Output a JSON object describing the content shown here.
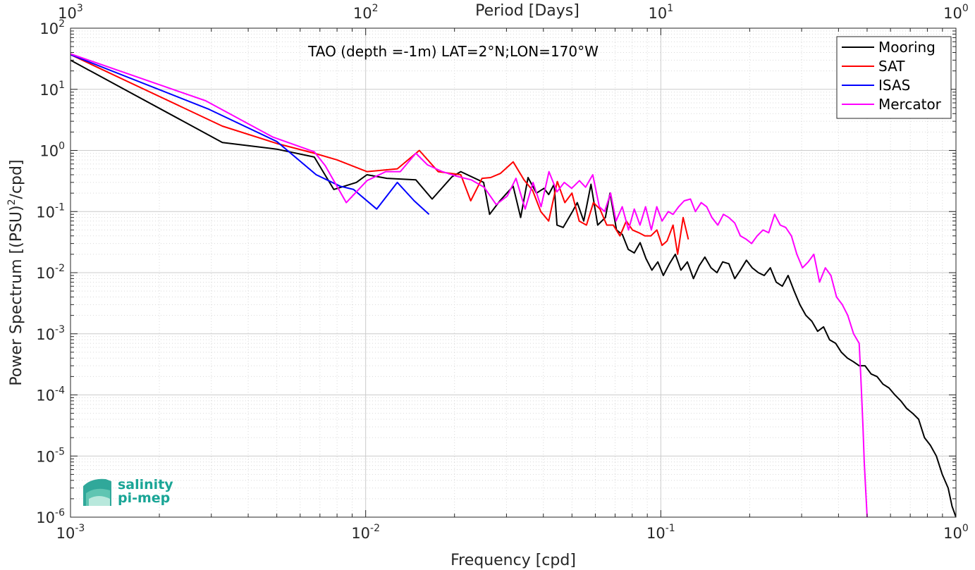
{
  "chart_data": {
    "type": "line",
    "title": "TAO (depth =-1m) LAT=2°N;LON=170°W",
    "xlabel": "Frequency [cpd]",
    "ylabel_main": "Power Spectrum [(PSU)",
    "ylabel_sup": "2",
    "ylabel_tail": "/cpd]",
    "top_xlabel": "Period [Days]",
    "x_scale": "log",
    "y_scale": "log",
    "xlim": [
      0.001,
      1
    ],
    "ylim": [
      1e-06,
      100
    ],
    "grid": true,
    "minor_grid": true,
    "legend_position": "top-right",
    "x_ticks": [
      {
        "value": 0.001,
        "base": "10",
        "exp": "-3"
      },
      {
        "value": 0.01,
        "base": "10",
        "exp": "-2"
      },
      {
        "value": 0.1,
        "base": "10",
        "exp": "-1"
      },
      {
        "value": 1,
        "base": "10",
        "exp": "0"
      }
    ],
    "top_ticks": [
      {
        "value": 0.001,
        "base": "10",
        "exp": "3"
      },
      {
        "value": 0.01,
        "base": "10",
        "exp": "2"
      },
      {
        "value": 0.1,
        "base": "10",
        "exp": "1"
      },
      {
        "value": 1,
        "base": "10",
        "exp": "0"
      }
    ],
    "y_ticks": [
      {
        "value": 100,
        "base": "10",
        "exp": "2"
      },
      {
        "value": 10,
        "base": "10",
        "exp": "1"
      },
      {
        "value": 1,
        "base": "10",
        "exp": "0"
      },
      {
        "value": 0.1,
        "base": "10",
        "exp": "-1"
      },
      {
        "value": 0.01,
        "base": "10",
        "exp": "-2"
      },
      {
        "value": 0.001,
        "base": "10",
        "exp": "-3"
      },
      {
        "value": 0.0001,
        "base": "10",
        "exp": "-4"
      },
      {
        "value": 1e-05,
        "base": "10",
        "exp": "-5"
      },
      {
        "value": 1e-06,
        "base": "10",
        "exp": "-6"
      }
    ],
    "series": [
      {
        "name": "Mooring",
        "color": "#000000",
        "points": [
          [
            0.001,
            30
          ],
          [
            0.00327,
            1.35
          ],
          [
            0.005,
            1.05
          ],
          [
            0.0067,
            0.78
          ],
          [
            0.0078,
            0.23
          ],
          [
            0.0093,
            0.3
          ],
          [
            0.0101,
            0.4
          ],
          [
            0.0118,
            0.35
          ],
          [
            0.0148,
            0.33
          ],
          [
            0.0168,
            0.16
          ],
          [
            0.0196,
            0.37
          ],
          [
            0.021,
            0.45
          ],
          [
            0.0251,
            0.3
          ],
          [
            0.0263,
            0.09
          ],
          [
            0.0285,
            0.15
          ],
          [
            0.0301,
            0.2
          ],
          [
            0.0316,
            0.26
          ],
          [
            0.0335,
            0.08
          ],
          [
            0.0355,
            0.36
          ],
          [
            0.0379,
            0.2
          ],
          [
            0.0402,
            0.24
          ],
          [
            0.0417,
            0.19
          ],
          [
            0.0435,
            0.28
          ],
          [
            0.0445,
            0.06
          ],
          [
            0.0467,
            0.055
          ],
          [
            0.0502,
            0.1
          ],
          [
            0.0521,
            0.14
          ],
          [
            0.0548,
            0.07
          ],
          [
            0.058,
            0.28
          ],
          [
            0.0611,
            0.06
          ],
          [
            0.0649,
            0.08
          ],
          [
            0.0673,
            0.2
          ],
          [
            0.0708,
            0.05
          ],
          [
            0.0741,
            0.042
          ],
          [
            0.0776,
            0.024
          ],
          [
            0.0813,
            0.021
          ],
          [
            0.0851,
            0.031
          ],
          [
            0.0891,
            0.017
          ],
          [
            0.0933,
            0.011
          ],
          [
            0.0977,
            0.015
          ],
          [
            0.102,
            0.009
          ],
          [
            0.107,
            0.014
          ],
          [
            0.112,
            0.02
          ],
          [
            0.117,
            0.011
          ],
          [
            0.123,
            0.015
          ],
          [
            0.129,
            0.008
          ],
          [
            0.135,
            0.013
          ],
          [
            0.141,
            0.018
          ],
          [
            0.148,
            0.012
          ],
          [
            0.155,
            0.01
          ],
          [
            0.162,
            0.015
          ],
          [
            0.17,
            0.014
          ],
          [
            0.178,
            0.008
          ],
          [
            0.186,
            0.011
          ],
          [
            0.195,
            0.016
          ],
          [
            0.204,
            0.012
          ],
          [
            0.214,
            0.01
          ],
          [
            0.224,
            0.009
          ],
          [
            0.235,
            0.012
          ],
          [
            0.246,
            0.007
          ],
          [
            0.258,
            0.006
          ],
          [
            0.27,
            0.009
          ],
          [
            0.283,
            0.005
          ],
          [
            0.296,
            0.003
          ],
          [
            0.31,
            0.002
          ],
          [
            0.325,
            0.0016
          ],
          [
            0.34,
            0.0011
          ],
          [
            0.356,
            0.0013
          ],
          [
            0.373,
            0.0008
          ],
          [
            0.391,
            0.0007
          ],
          [
            0.409,
            0.0005
          ],
          [
            0.429,
            0.0004
          ],
          [
            0.449,
            0.00035
          ],
          [
            0.47,
            0.0003
          ],
          [
            0.492,
            0.0003
          ],
          [
            0.516,
            0.00022
          ],
          [
            0.54,
            0.0002
          ],
          [
            0.566,
            0.00015
          ],
          [
            0.593,
            0.00013
          ],
          [
            0.621,
            0.0001
          ],
          [
            0.65,
            8e-05
          ],
          [
            0.681,
            6e-05
          ],
          [
            0.713,
            5e-05
          ],
          [
            0.747,
            4e-05
          ],
          [
            0.782,
            2e-05
          ],
          [
            0.819,
            1.5e-05
          ],
          [
            0.858,
            1e-05
          ],
          [
            0.899,
            5e-06
          ],
          [
            0.941,
            3e-06
          ],
          [
            0.97,
            1.5e-06
          ],
          [
            1.0,
            1e-06
          ]
        ]
      },
      {
        "name": "SAT",
        "color": "#ff0000",
        "points": [
          [
            0.001,
            37
          ],
          [
            0.00327,
            2.5
          ],
          [
            0.005,
            1.3
          ],
          [
            0.0067,
            0.9
          ],
          [
            0.008,
            0.7
          ],
          [
            0.0101,
            0.45
          ],
          [
            0.0128,
            0.5
          ],
          [
            0.0152,
            1.0
          ],
          [
            0.0176,
            0.45
          ],
          [
            0.021,
            0.4
          ],
          [
            0.0227,
            0.15
          ],
          [
            0.0248,
            0.35
          ],
          [
            0.0265,
            0.36
          ],
          [
            0.0286,
            0.42
          ],
          [
            0.0316,
            0.65
          ],
          [
            0.0344,
            0.33
          ],
          [
            0.0368,
            0.22
          ],
          [
            0.0392,
            0.1
          ],
          [
            0.0417,
            0.07
          ],
          [
            0.0446,
            0.31
          ],
          [
            0.0473,
            0.14
          ],
          [
            0.05,
            0.2
          ],
          [
            0.0529,
            0.07
          ],
          [
            0.056,
            0.06
          ],
          [
            0.0591,
            0.14
          ],
          [
            0.0622,
            0.11
          ],
          [
            0.0656,
            0.06
          ],
          [
            0.069,
            0.06
          ],
          [
            0.0727,
            0.04
          ],
          [
            0.0764,
            0.07
          ],
          [
            0.0802,
            0.05
          ],
          [
            0.0842,
            0.045
          ],
          [
            0.0883,
            0.04
          ],
          [
            0.0925,
            0.04
          ],
          [
            0.097,
            0.05
          ],
          [
            0.101,
            0.028
          ],
          [
            0.105,
            0.033
          ],
          [
            0.11,
            0.06
          ],
          [
            0.114,
            0.02
          ],
          [
            0.119,
            0.08
          ],
          [
            0.124,
            0.035
          ]
        ]
      },
      {
        "name": "ISAS",
        "color": "#0000ff",
        "points": [
          [
            0.001,
            37
          ],
          [
            0.00292,
            4.8
          ],
          [
            0.005,
            1.4
          ],
          [
            0.0068,
            0.4
          ],
          [
            0.0082,
            0.26
          ],
          [
            0.0091,
            0.23
          ],
          [
            0.0109,
            0.11
          ],
          [
            0.0128,
            0.3
          ],
          [
            0.0146,
            0.15
          ],
          [
            0.0164,
            0.09
          ]
        ]
      },
      {
        "name": "Mercator",
        "color": "#ff00ff",
        "points": [
          [
            0.001,
            38
          ],
          [
            0.00287,
            6.5
          ],
          [
            0.00485,
            1.65
          ],
          [
            0.0067,
            0.95
          ],
          [
            0.0073,
            0.56
          ],
          [
            0.0086,
            0.14
          ],
          [
            0.0101,
            0.32
          ],
          [
            0.0117,
            0.45
          ],
          [
            0.0131,
            0.45
          ],
          [
            0.0148,
            0.9
          ],
          [
            0.0162,
            0.58
          ],
          [
            0.0182,
            0.45
          ],
          [
            0.0203,
            0.38
          ],
          [
            0.0228,
            0.33
          ],
          [
            0.0252,
            0.25
          ],
          [
            0.0277,
            0.13
          ],
          [
            0.0302,
            0.18
          ],
          [
            0.0323,
            0.35
          ],
          [
            0.0347,
            0.11
          ],
          [
            0.0369,
            0.3
          ],
          [
            0.0393,
            0.12
          ],
          [
            0.0418,
            0.45
          ],
          [
            0.0445,
            0.21
          ],
          [
            0.0471,
            0.3
          ],
          [
            0.0499,
            0.24
          ],
          [
            0.053,
            0.32
          ],
          [
            0.0556,
            0.25
          ],
          [
            0.0588,
            0.4
          ],
          [
            0.0619,
            0.12
          ],
          [
            0.0645,
            0.1
          ],
          [
            0.0676,
            0.2
          ],
          [
            0.0705,
            0.07
          ],
          [
            0.074,
            0.12
          ],
          [
            0.0777,
            0.05
          ],
          [
            0.0813,
            0.11
          ],
          [
            0.085,
            0.06
          ],
          [
            0.0888,
            0.12
          ],
          [
            0.0929,
            0.05
          ],
          [
            0.0969,
            0.12
          ],
          [
            0.101,
            0.07
          ],
          [
            0.106,
            0.1
          ],
          [
            0.11,
            0.09
          ],
          [
            0.115,
            0.12
          ],
          [
            0.12,
            0.15
          ],
          [
            0.126,
            0.16
          ],
          [
            0.131,
            0.1
          ],
          [
            0.137,
            0.14
          ],
          [
            0.143,
            0.12
          ],
          [
            0.149,
            0.08
          ],
          [
            0.156,
            0.06
          ],
          [
            0.163,
            0.09
          ],
          [
            0.17,
            0.08
          ],
          [
            0.178,
            0.065
          ],
          [
            0.186,
            0.04
          ],
          [
            0.195,
            0.035
          ],
          [
            0.203,
            0.03
          ],
          [
            0.212,
            0.04
          ],
          [
            0.222,
            0.05
          ],
          [
            0.232,
            0.045
          ],
          [
            0.243,
            0.09
          ],
          [
            0.254,
            0.06
          ],
          [
            0.265,
            0.055
          ],
          [
            0.277,
            0.04
          ],
          [
            0.289,
            0.02
          ],
          [
            0.302,
            0.012
          ],
          [
            0.316,
            0.015
          ],
          [
            0.33,
            0.02
          ],
          [
            0.345,
            0.007
          ],
          [
            0.361,
            0.012
          ],
          [
            0.377,
            0.009
          ],
          [
            0.394,
            0.004
          ],
          [
            0.412,
            0.003
          ],
          [
            0.43,
            0.002
          ],
          [
            0.45,
            0.001
          ],
          [
            0.47,
            0.0007
          ],
          [
            0.476,
            0.0002
          ],
          [
            0.48,
            8e-05
          ],
          [
            0.484,
            3e-05
          ],
          [
            0.489,
            8e-06
          ],
          [
            0.494,
            3e-06
          ],
          [
            0.5,
            1e-06
          ]
        ]
      }
    ]
  },
  "logo": {
    "line1": "salinity",
    "line2": "pi-mep"
  }
}
